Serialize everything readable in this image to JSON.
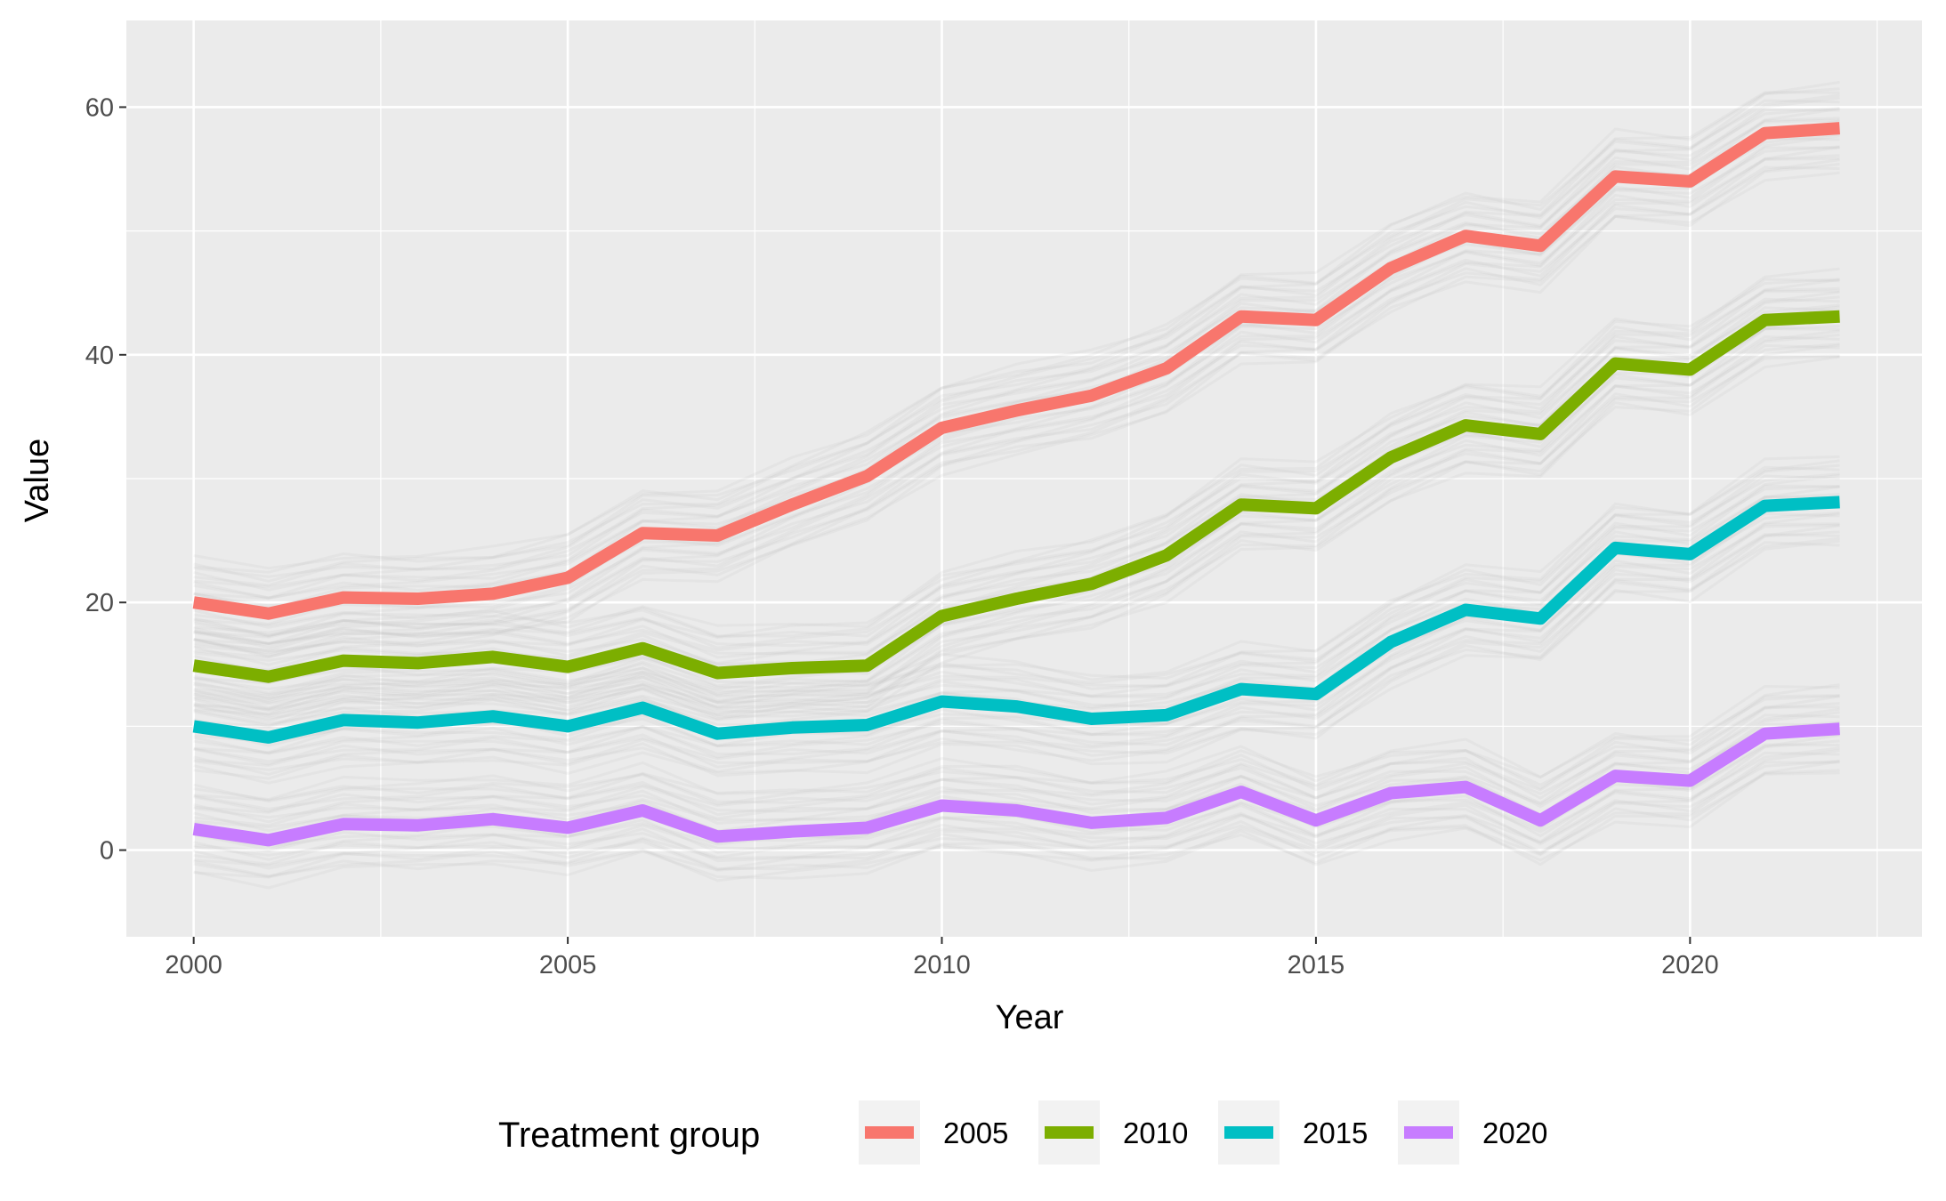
{
  "chart_data": {
    "type": "line",
    "xlabel": "Year",
    "ylabel": "Value",
    "xlim": [
      1999.1,
      2023.1
    ],
    "ylim": [
      -7,
      67
    ],
    "x_ticks": [
      2000,
      2005,
      2010,
      2015,
      2020
    ],
    "x_tick_labels": [
      "2000",
      "2005",
      "2010",
      "2015",
      "2020"
    ],
    "y_ticks": [
      0,
      20,
      40,
      60
    ],
    "y_tick_labels": [
      "0",
      "20",
      "40",
      "60"
    ],
    "grid": true,
    "legend": {
      "title": "Treatment group",
      "position": "bottom"
    },
    "background_band": {
      "description": "semi-transparent grey simulated paths around each series",
      "color": "#b3b3b3",
      "half_width": 3.5
    },
    "x": [
      2000,
      2001,
      2002,
      2003,
      2004,
      2005,
      2006,
      2007,
      2008,
      2009,
      2010,
      2011,
      2012,
      2013,
      2014,
      2015,
      2016,
      2017,
      2018,
      2019,
      2020,
      2021,
      2022
    ],
    "series": [
      {
        "name": "2005",
        "color": "#F8766D",
        "values": [
          20.0,
          19.1,
          20.4,
          20.3,
          20.7,
          22.0,
          25.6,
          25.4,
          27.9,
          30.2,
          34.1,
          35.5,
          36.7,
          38.9,
          43.1,
          42.8,
          47.0,
          49.6,
          48.8,
          54.4,
          54.0,
          57.9,
          58.3
        ]
      },
      {
        "name": "2010",
        "color": "#7CAE00",
        "values": [
          14.9,
          14.0,
          15.3,
          15.1,
          15.6,
          14.8,
          16.3,
          14.3,
          14.7,
          14.9,
          18.9,
          20.3,
          21.5,
          23.8,
          27.9,
          27.6,
          31.7,
          34.3,
          33.6,
          39.3,
          38.8,
          42.8,
          43.1
        ]
      },
      {
        "name": "2015",
        "color": "#00BFC4",
        "values": [
          10.0,
          9.1,
          10.5,
          10.3,
          10.8,
          10.0,
          11.5,
          9.4,
          9.9,
          10.1,
          12.0,
          11.6,
          10.6,
          10.9,
          13.0,
          12.6,
          16.8,
          19.4,
          18.7,
          24.4,
          23.9,
          27.8,
          28.1
        ]
      },
      {
        "name": "2020",
        "color": "#C77CFF",
        "values": [
          1.7,
          0.8,
          2.1,
          2.0,
          2.5,
          1.8,
          3.2,
          1.1,
          1.5,
          1.8,
          3.6,
          3.2,
          2.2,
          2.6,
          4.7,
          2.4,
          4.6,
          5.1,
          2.4,
          6.0,
          5.6,
          9.4,
          9.8
        ]
      }
    ]
  }
}
